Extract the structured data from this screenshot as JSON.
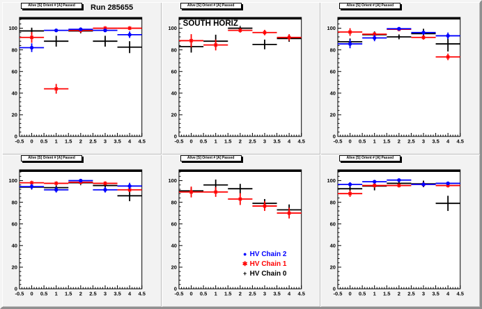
{
  "canvas": {
    "background": "#cfcfcf",
    "pad_background": "#f2f2f2",
    "frame_background": "#ffffff",
    "accent_colors": {
      "chain2": "#0000ff",
      "chain1": "#ff0000",
      "chain0": "#000000"
    }
  },
  "legend": {
    "pad_index": 4,
    "items": [
      {
        "label": "HV Chain 2",
        "color": "#0000ff",
        "marker": "circle-icon",
        "glyph": "●"
      },
      {
        "label": "HV Chain 1",
        "color": "#ff0000",
        "marker": "star-icon",
        "glyph": "✱"
      },
      {
        "label": "HV Chain 0",
        "color": "#000000",
        "marker": "plus-icon",
        "glyph": "+"
      }
    ]
  },
  "chart_data": [
    {
      "type": "scatter",
      "header": "Alive [S] Orient # [A] Passed",
      "title_label": "Run 285655",
      "inner_label": "",
      "xlim": [
        -0.5,
        4.5
      ],
      "ylim": [
        0,
        110
      ],
      "xticks": [
        "-0.5",
        "0",
        "0.5",
        "1",
        "1.5",
        "2",
        "2.5",
        "3",
        "3.5",
        "4",
        "4.5"
      ],
      "yticks": [
        "0",
        "20",
        "40",
        "60",
        "80",
        "100"
      ],
      "x": [
        0,
        1,
        2,
        3,
        4
      ],
      "xerr": 0.5,
      "series": [
        {
          "name": "HV Chain 0",
          "color": "#000000",
          "marker": "plus",
          "y": [
            97.5,
            88,
            97.5,
            88,
            82.5
          ],
          "yerr": [
            3,
            5,
            2,
            5,
            5.5
          ]
        },
        {
          "name": "HV Chain 1",
          "color": "#ff0000",
          "marker": "star",
          "y": [
            91.5,
            44,
            98,
            100,
            100
          ],
          "yerr": [
            5,
            4.5,
            2,
            1.5,
            1.5
          ]
        },
        {
          "name": "HV Chain 2",
          "color": "#0000ff",
          "marker": "circle",
          "y": [
            82,
            98,
            99,
            98,
            94
          ],
          "yerr": [
            4,
            1.5,
            1.5,
            1.5,
            3
          ]
        }
      ]
    },
    {
      "type": "scatter",
      "header": "Alive [S] Orient # [A] Passed",
      "title_label": "",
      "inner_label": "SOUTH HORIZ",
      "xlim": [
        -0.5,
        4.5
      ],
      "ylim": [
        0,
        110
      ],
      "xticks": [
        "-0.5",
        "0",
        "0.5",
        "1",
        "1.5",
        "2",
        "2.5",
        "3",
        "3.5",
        "4",
        "4.5"
      ],
      "yticks": [
        "0",
        "20",
        "40",
        "60",
        "80",
        "100"
      ],
      "x": [
        0,
        1,
        2,
        3,
        4
      ],
      "xerr": 0.5,
      "series": [
        {
          "name": "HV Chain 0",
          "color": "#000000",
          "marker": "plus",
          "y": [
            83,
            88,
            100,
            85,
            90.5
          ],
          "yerr": [
            5.5,
            6,
            1,
            4.5,
            3
          ]
        },
        {
          "name": "HV Chain 1",
          "color": "#ff0000",
          "marker": "star",
          "y": [
            88.5,
            84.5,
            98,
            96,
            91.5
          ],
          "yerr": [
            6,
            5,
            2,
            2.5,
            3
          ]
        }
      ]
    },
    {
      "type": "scatter",
      "header": "Alive [S] Orient # [A] Passed",
      "title_label": "",
      "inner_label": "",
      "xlim": [
        -0.5,
        4.5
      ],
      "ylim": [
        0,
        110
      ],
      "xticks": [
        "-0.5",
        "0",
        "0.5",
        "1",
        "1.5",
        "2",
        "2.5",
        "3",
        "3.5",
        "4",
        "4.5"
      ],
      "yticks": [
        "0",
        "20",
        "40",
        "60",
        "80",
        "100"
      ],
      "x": [
        0,
        1,
        2,
        3,
        4
      ],
      "xerr": 0.5,
      "series": [
        {
          "name": "HV Chain 0",
          "color": "#000000",
          "marker": "plus",
          "y": [
            87.5,
            94,
            92,
            95,
            85.5
          ],
          "yerr": [
            3,
            3,
            2,
            4.5,
            7
          ]
        },
        {
          "name": "HV Chain 1",
          "color": "#ff0000",
          "marker": "star",
          "y": [
            96.5,
            94.5,
            99,
            91.5,
            73.5
          ],
          "yerr": [
            3.5,
            2,
            1,
            2,
            3
          ]
        },
        {
          "name": "HV Chain 2",
          "color": "#0000ff",
          "marker": "circle",
          "y": [
            85.5,
            91,
            99.5,
            96,
            93
          ],
          "yerr": [
            4,
            3,
            1,
            2,
            3
          ]
        }
      ]
    },
    {
      "type": "scatter",
      "header": "Alive [S] Orient # [A] Passed",
      "title_label": "",
      "inner_label": "",
      "xlim": [
        -0.5,
        4.5
      ],
      "ylim": [
        0,
        110
      ],
      "xticks": [
        "-0.5",
        "0",
        "0.5",
        "1",
        "1.5",
        "2",
        "2.5",
        "3",
        "3.5",
        "4",
        "4.5"
      ],
      "yticks": [
        "0",
        "20",
        "40",
        "60",
        "80",
        "100"
      ],
      "x": [
        0,
        1,
        2,
        3,
        4
      ],
      "xerr": 0.5,
      "series": [
        {
          "name": "HV Chain 0",
          "color": "#000000",
          "marker": "plus",
          "y": [
            94,
            93.5,
            98,
            95.5,
            86
          ],
          "yerr": [
            2,
            2,
            1.5,
            2,
            5
          ]
        },
        {
          "name": "HV Chain 1",
          "color": "#ff0000",
          "marker": "star",
          "y": [
            98,
            97.5,
            98.5,
            97.5,
            91.5
          ],
          "yerr": [
            1.5,
            1.5,
            1,
            1.5,
            2
          ]
        },
        {
          "name": "HV Chain 2",
          "color": "#0000ff",
          "marker": "circle",
          "y": [
            94.5,
            91.5,
            100,
            91.5,
            95
          ],
          "yerr": [
            2.5,
            2.5,
            1.5,
            2.5,
            3
          ]
        }
      ]
    },
    {
      "type": "scatter",
      "header": "Alive [S] Orient # [A] Passed",
      "title_label": "",
      "inner_label": "",
      "xlim": [
        -0.5,
        4.5
      ],
      "ylim": [
        0,
        110
      ],
      "xticks": [
        "-0.5",
        "0",
        "0.5",
        "1",
        "1.5",
        "2",
        "2.5",
        "3",
        "3.5",
        "4",
        "4.5"
      ],
      "yticks": [
        "0",
        "20",
        "40",
        "60",
        "80",
        "100"
      ],
      "x": [
        0,
        1,
        2,
        3,
        4
      ],
      "xerr": 0.5,
      "series": [
        {
          "name": "HV Chain 0",
          "color": "#000000",
          "marker": "plus",
          "y": [
            90.5,
            96,
            92.5,
            79,
            73
          ],
          "yerr": [
            3,
            5,
            4.5,
            4,
            5
          ]
        },
        {
          "name": "HV Chain 1",
          "color": "#ff0000",
          "marker": "star",
          "y": [
            89.5,
            89.5,
            83,
            76.5,
            70
          ],
          "yerr": [
            5,
            4.5,
            5.5,
            4.5,
            5
          ]
        }
      ]
    },
    {
      "type": "scatter",
      "header": "Alive [S] Orient # [A] Passed",
      "title_label": "",
      "inner_label": "",
      "xlim": [
        -0.5,
        4.5
      ],
      "ylim": [
        0,
        110
      ],
      "xticks": [
        "-0.5",
        "0",
        "0.5",
        "1",
        "1.5",
        "2",
        "2.5",
        "3",
        "3.5",
        "4",
        "4.5"
      ],
      "yticks": [
        "0",
        "20",
        "40",
        "60",
        "80",
        "100"
      ],
      "x": [
        0,
        1,
        2,
        3,
        4
      ],
      "xerr": 0.5,
      "series": [
        {
          "name": "HV Chain 0",
          "color": "#000000",
          "marker": "plus",
          "y": [
            92.5,
            95,
            97.5,
            97,
            79
          ],
          "yerr": [
            2,
            4,
            1.5,
            3,
            7
          ]
        },
        {
          "name": "HV Chain 1",
          "color": "#ff0000",
          "marker": "star",
          "y": [
            88,
            95.5,
            95.5,
            96.5,
            95.5
          ],
          "yerr": [
            3,
            1.5,
            1.5,
            2,
            1.5
          ]
        },
        {
          "name": "HV Chain 2",
          "color": "#0000ff",
          "marker": "circle",
          "y": [
            96.5,
            99,
            100.5,
            96.5,
            97.5
          ],
          "yerr": [
            2,
            1.5,
            1,
            2,
            1.5
          ]
        }
      ]
    }
  ]
}
